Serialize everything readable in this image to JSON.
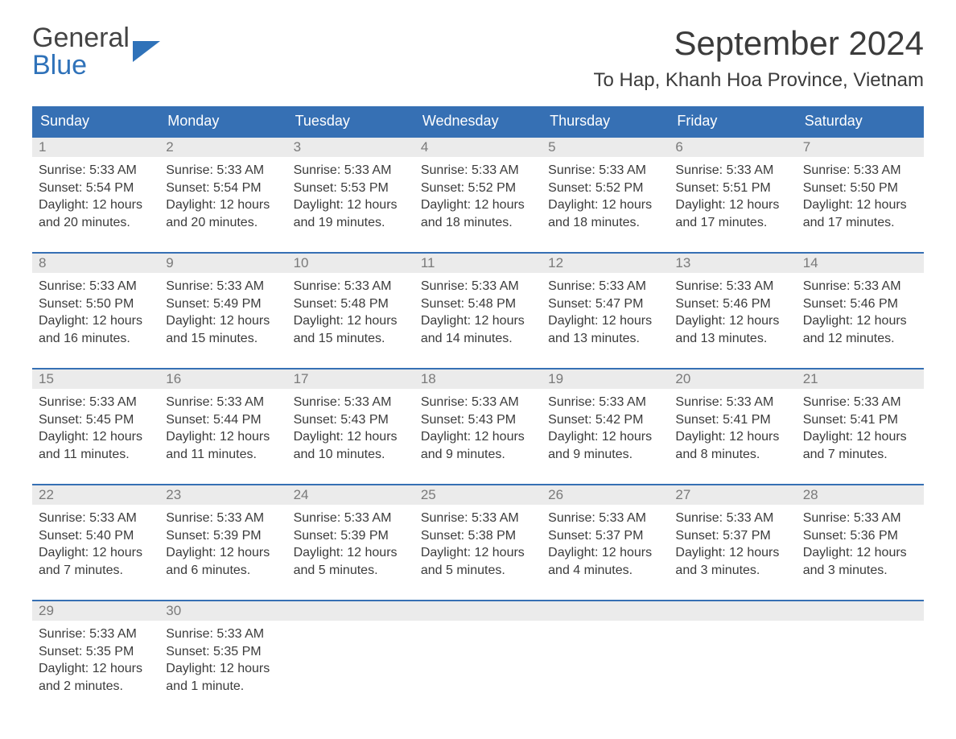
{
  "brand": {
    "word1": "General",
    "word2": "Blue"
  },
  "title": "September 2024",
  "location": "To Hap, Khanh Hoa Province, Vietnam",
  "colors": {
    "header_bg": "#3670b4",
    "header_text": "#ffffff",
    "daynum_bg": "#ebebeb",
    "daynum_text": "#7a7a7a",
    "body_text": "#3b3b3b",
    "accent": "#2f72b9",
    "row_border": "#3670b4"
  },
  "day_headers": [
    "Sunday",
    "Monday",
    "Tuesday",
    "Wednesday",
    "Thursday",
    "Friday",
    "Saturday"
  ],
  "labels": {
    "sunrise": "Sunrise:",
    "sunset": "Sunset:",
    "daylight": "Daylight:"
  },
  "weeks": [
    [
      {
        "n": "1",
        "sunrise": "5:33 AM",
        "sunset": "5:54 PM",
        "daylight": "12 hours and 20 minutes."
      },
      {
        "n": "2",
        "sunrise": "5:33 AM",
        "sunset": "5:54 PM",
        "daylight": "12 hours and 20 minutes."
      },
      {
        "n": "3",
        "sunrise": "5:33 AM",
        "sunset": "5:53 PM",
        "daylight": "12 hours and 19 minutes."
      },
      {
        "n": "4",
        "sunrise": "5:33 AM",
        "sunset": "5:52 PM",
        "daylight": "12 hours and 18 minutes."
      },
      {
        "n": "5",
        "sunrise": "5:33 AM",
        "sunset": "5:52 PM",
        "daylight": "12 hours and 18 minutes."
      },
      {
        "n": "6",
        "sunrise": "5:33 AM",
        "sunset": "5:51 PM",
        "daylight": "12 hours and 17 minutes."
      },
      {
        "n": "7",
        "sunrise": "5:33 AM",
        "sunset": "5:50 PM",
        "daylight": "12 hours and 17 minutes."
      }
    ],
    [
      {
        "n": "8",
        "sunrise": "5:33 AM",
        "sunset": "5:50 PM",
        "daylight": "12 hours and 16 minutes."
      },
      {
        "n": "9",
        "sunrise": "5:33 AM",
        "sunset": "5:49 PM",
        "daylight": "12 hours and 15 minutes."
      },
      {
        "n": "10",
        "sunrise": "5:33 AM",
        "sunset": "5:48 PM",
        "daylight": "12 hours and 15 minutes."
      },
      {
        "n": "11",
        "sunrise": "5:33 AM",
        "sunset": "5:48 PM",
        "daylight": "12 hours and 14 minutes."
      },
      {
        "n": "12",
        "sunrise": "5:33 AM",
        "sunset": "5:47 PM",
        "daylight": "12 hours and 13 minutes."
      },
      {
        "n": "13",
        "sunrise": "5:33 AM",
        "sunset": "5:46 PM",
        "daylight": "12 hours and 13 minutes."
      },
      {
        "n": "14",
        "sunrise": "5:33 AM",
        "sunset": "5:46 PM",
        "daylight": "12 hours and 12 minutes."
      }
    ],
    [
      {
        "n": "15",
        "sunrise": "5:33 AM",
        "sunset": "5:45 PM",
        "daylight": "12 hours and 11 minutes."
      },
      {
        "n": "16",
        "sunrise": "5:33 AM",
        "sunset": "5:44 PM",
        "daylight": "12 hours and 11 minutes."
      },
      {
        "n": "17",
        "sunrise": "5:33 AM",
        "sunset": "5:43 PM",
        "daylight": "12 hours and 10 minutes."
      },
      {
        "n": "18",
        "sunrise": "5:33 AM",
        "sunset": "5:43 PM",
        "daylight": "12 hours and 9 minutes."
      },
      {
        "n": "19",
        "sunrise": "5:33 AM",
        "sunset": "5:42 PM",
        "daylight": "12 hours and 9 minutes."
      },
      {
        "n": "20",
        "sunrise": "5:33 AM",
        "sunset": "5:41 PM",
        "daylight": "12 hours and 8 minutes."
      },
      {
        "n": "21",
        "sunrise": "5:33 AM",
        "sunset": "5:41 PM",
        "daylight": "12 hours and 7 minutes."
      }
    ],
    [
      {
        "n": "22",
        "sunrise": "5:33 AM",
        "sunset": "5:40 PM",
        "daylight": "12 hours and 7 minutes."
      },
      {
        "n": "23",
        "sunrise": "5:33 AM",
        "sunset": "5:39 PM",
        "daylight": "12 hours and 6 minutes."
      },
      {
        "n": "24",
        "sunrise": "5:33 AM",
        "sunset": "5:39 PM",
        "daylight": "12 hours and 5 minutes."
      },
      {
        "n": "25",
        "sunrise": "5:33 AM",
        "sunset": "5:38 PM",
        "daylight": "12 hours and 5 minutes."
      },
      {
        "n": "26",
        "sunrise": "5:33 AM",
        "sunset": "5:37 PM",
        "daylight": "12 hours and 4 minutes."
      },
      {
        "n": "27",
        "sunrise": "5:33 AM",
        "sunset": "5:37 PM",
        "daylight": "12 hours and 3 minutes."
      },
      {
        "n": "28",
        "sunrise": "5:33 AM",
        "sunset": "5:36 PM",
        "daylight": "12 hours and 3 minutes."
      }
    ],
    [
      {
        "n": "29",
        "sunrise": "5:33 AM",
        "sunset": "5:35 PM",
        "daylight": "12 hours and 2 minutes."
      },
      {
        "n": "30",
        "sunrise": "5:33 AM",
        "sunset": "5:35 PM",
        "daylight": "12 hours and 1 minute."
      },
      null,
      null,
      null,
      null,
      null
    ]
  ]
}
